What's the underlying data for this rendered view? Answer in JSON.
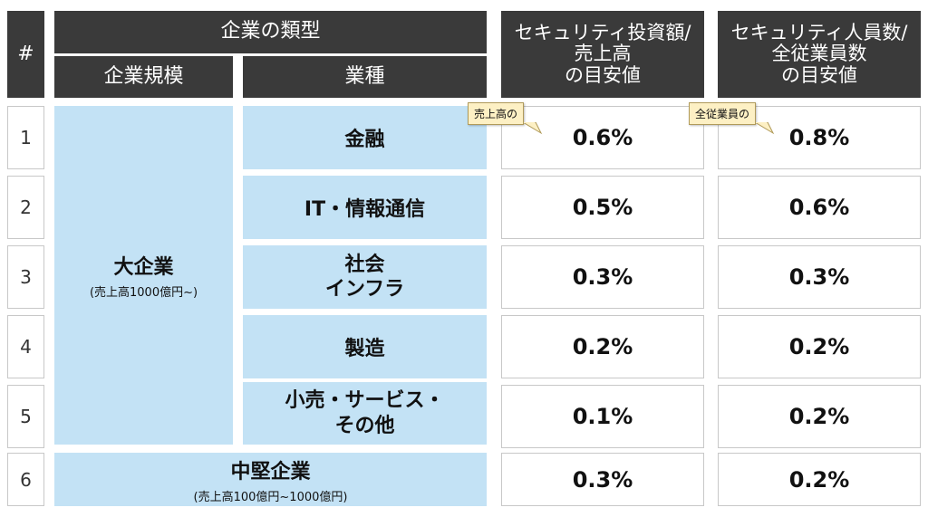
{
  "header": {
    "num": "#",
    "company_type": "企業の類型",
    "scale": "企業規模",
    "industry": "業種",
    "col_invest": [
      "セキュリティ投資額/",
      "売上高",
      "の目安値"
    ],
    "col_staff": [
      "セキュリティ人員数/",
      "全従業員数",
      "の目安値"
    ]
  },
  "large": {
    "label": "大企業",
    "sub": "(売上高1000億円~)"
  },
  "mid": {
    "label": "中堅企業",
    "sub": "(売上高100億円~1000億円)"
  },
  "rows": [
    {
      "num": "1",
      "industry": [
        "金融"
      ],
      "invest": "0.6%",
      "staff": "0.8%"
    },
    {
      "num": "2",
      "industry": [
        "IT・情報通信"
      ],
      "invest": "0.5%",
      "staff": "0.6%"
    },
    {
      "num": "3",
      "industry": [
        "社会",
        "インフラ"
      ],
      "invest": "0.3%",
      "staff": "0.3%"
    },
    {
      "num": "4",
      "industry": [
        "製造"
      ],
      "invest": "0.2%",
      "staff": "0.2%"
    },
    {
      "num": "5",
      "industry": [
        "小売・サービス・",
        "その他"
      ],
      "invest": "0.1%",
      "staff": "0.2%"
    },
    {
      "num": "6",
      "invest": "0.3%",
      "staff": "0.2%"
    }
  ],
  "callouts": {
    "invest": "売上高の",
    "staff": "全従業員の"
  }
}
